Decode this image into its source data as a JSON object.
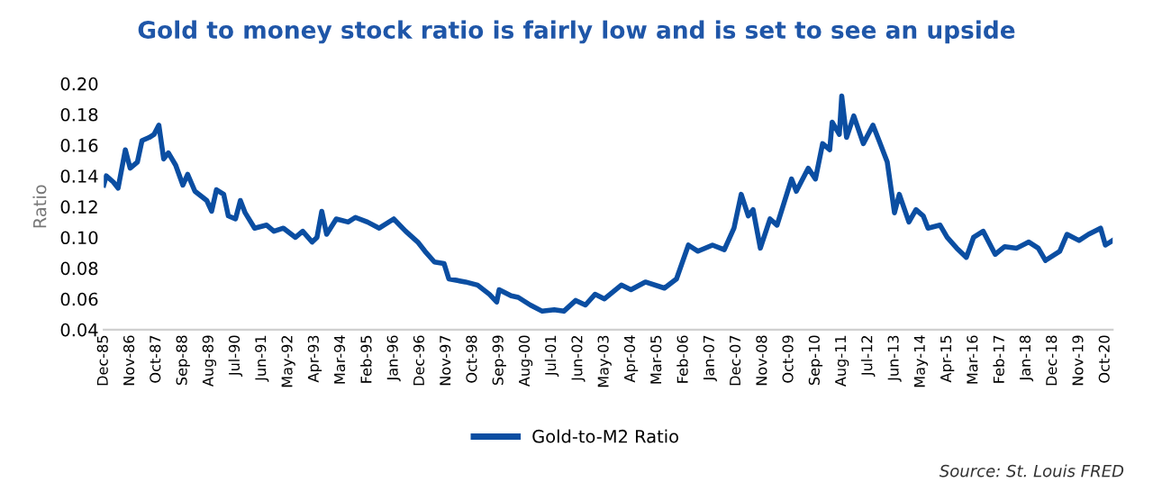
{
  "chart_data": {
    "type": "line",
    "title": "Gold to money stock ratio is fairly low and is set to see an upside",
    "ylabel": "Ratio",
    "annotations": [
      "Source: St. Louis FRED"
    ],
    "x": [
      "1985-12",
      "1986-01",
      "1986-04",
      "1986-06",
      "1986-09",
      "1986-11",
      "1987-02",
      "1987-04",
      "1987-07",
      "1987-09",
      "1987-11",
      "1988-01",
      "1988-03",
      "1988-06",
      "1988-09",
      "1988-11",
      "1989-02",
      "1989-07",
      "1989-09",
      "1989-11",
      "1990-02",
      "1990-04",
      "1990-07",
      "1990-09",
      "1990-11",
      "1991-03",
      "1991-08",
      "1991-11",
      "1992-03",
      "1992-08",
      "1992-11",
      "1993-03",
      "1993-05",
      "1993-07",
      "1993-09",
      "1994-01",
      "1994-06",
      "1994-09",
      "1995-02",
      "1995-07",
      "1996-01",
      "1996-06",
      "1996-11",
      "1997-02",
      "1997-06",
      "1997-10",
      "1997-12",
      "1998-07",
      "1998-12",
      "1999-05",
      "1999-08",
      "1999-09",
      "2000-02",
      "2000-05",
      "2000-10",
      "2001-03",
      "2001-08",
      "2001-12",
      "2002-05",
      "2002-09",
      "2003-01",
      "2003-05",
      "2003-12",
      "2004-04",
      "2004-10",
      "2005-06",
      "2005-11",
      "2006-04",
      "2006-08",
      "2007-02",
      "2007-07",
      "2007-11",
      "2008-02",
      "2008-05",
      "2008-07",
      "2008-10",
      "2009-02",
      "2009-05",
      "2009-11",
      "2010-01",
      "2010-06",
      "2010-09",
      "2010-12",
      "2011-03",
      "2011-04",
      "2011-07",
      "2011-08",
      "2011-10",
      "2012-01",
      "2012-05",
      "2012-09",
      "2012-12",
      "2013-03",
      "2013-06",
      "2013-08",
      "2013-12",
      "2014-03",
      "2014-06",
      "2014-08",
      "2015-01",
      "2015-04",
      "2015-08",
      "2015-12",
      "2016-03",
      "2016-07",
      "2016-12",
      "2017-04",
      "2017-09",
      "2018-02",
      "2018-06",
      "2018-09",
      "2019-03",
      "2019-06",
      "2019-11",
      "2020-03",
      "2020-08",
      "2020-10",
      "2021-01"
    ],
    "series": [
      {
        "name": "Gold-to-M2 Ratio",
        "color": "#0b4ea2",
        "values": [
          0.134,
          0.14,
          0.136,
          0.132,
          0.157,
          0.145,
          0.149,
          0.163,
          0.165,
          0.167,
          0.173,
          0.151,
          0.155,
          0.147,
          0.134,
          0.141,
          0.13,
          0.124,
          0.117,
          0.131,
          0.128,
          0.114,
          0.112,
          0.124,
          0.116,
          0.106,
          0.108,
          0.104,
          0.106,
          0.1,
          0.104,
          0.097,
          0.1,
          0.117,
          0.102,
          0.112,
          0.11,
          0.113,
          0.11,
          0.106,
          0.112,
          0.104,
          0.097,
          0.091,
          0.084,
          0.083,
          0.073,
          0.071,
          0.069,
          0.063,
          0.058,
          0.066,
          0.062,
          0.061,
          0.056,
          0.052,
          0.053,
          0.052,
          0.059,
          0.056,
          0.063,
          0.06,
          0.069,
          0.066,
          0.071,
          0.067,
          0.073,
          0.095,
          0.091,
          0.095,
          0.092,
          0.106,
          0.128,
          0.114,
          0.118,
          0.093,
          0.112,
          0.108,
          0.138,
          0.13,
          0.145,
          0.138,
          0.161,
          0.157,
          0.175,
          0.167,
          0.192,
          0.165,
          0.179,
          0.161,
          0.173,
          0.161,
          0.149,
          0.116,
          0.128,
          0.11,
          0.118,
          0.114,
          0.106,
          0.108,
          0.1,
          0.093,
          0.087,
          0.1,
          0.104,
          0.089,
          0.094,
          0.093,
          0.097,
          0.093,
          0.085,
          0.091,
          0.102,
          0.098,
          0.102,
          0.106,
          0.095,
          0.098
        ]
      }
    ],
    "xlim": [
      "1985-12",
      "2021-01"
    ],
    "xticks": [
      {
        "value": "1985-12",
        "label": "Dec-85"
      },
      {
        "value": "1986-11",
        "label": "Nov-86"
      },
      {
        "value": "1987-10",
        "label": "Oct-87"
      },
      {
        "value": "1988-09",
        "label": "Sep-88"
      },
      {
        "value": "1989-08",
        "label": "Aug-89"
      },
      {
        "value": "1990-07",
        "label": "Jul-90"
      },
      {
        "value": "1991-06",
        "label": "Jun-91"
      },
      {
        "value": "1992-05",
        "label": "May-92"
      },
      {
        "value": "1993-04",
        "label": "Apr-93"
      },
      {
        "value": "1994-03",
        "label": "Mar-94"
      },
      {
        "value": "1995-02",
        "label": "Feb-95"
      },
      {
        "value": "1996-01",
        "label": "Jan-96"
      },
      {
        "value": "1996-12",
        "label": "Dec-96"
      },
      {
        "value": "1997-11",
        "label": "Nov-97"
      },
      {
        "value": "1998-10",
        "label": "Oct-98"
      },
      {
        "value": "1999-09",
        "label": "Sep-99"
      },
      {
        "value": "2000-08",
        "label": "Aug-00"
      },
      {
        "value": "2001-07",
        "label": "Jul-01"
      },
      {
        "value": "2002-06",
        "label": "Jun-02"
      },
      {
        "value": "2003-05",
        "label": "May-03"
      },
      {
        "value": "2004-04",
        "label": "Apr-04"
      },
      {
        "value": "2005-03",
        "label": "Mar-05"
      },
      {
        "value": "2006-02",
        "label": "Feb-06"
      },
      {
        "value": "2007-01",
        "label": "Jan-07"
      },
      {
        "value": "2007-12",
        "label": "Dec-07"
      },
      {
        "value": "2008-11",
        "label": "Nov-08"
      },
      {
        "value": "2009-10",
        "label": "Oct-09"
      },
      {
        "value": "2010-09",
        "label": "Sep-10"
      },
      {
        "value": "2011-08",
        "label": "Aug-11"
      },
      {
        "value": "2012-07",
        "label": "Jul-12"
      },
      {
        "value": "2013-06",
        "label": "Jun-13"
      },
      {
        "value": "2014-05",
        "label": "May-14"
      },
      {
        "value": "2015-04",
        "label": "Apr-15"
      },
      {
        "value": "2016-03",
        "label": "Mar-16"
      },
      {
        "value": "2017-02",
        "label": "Feb-17"
      },
      {
        "value": "2018-01",
        "label": "Jan-18"
      },
      {
        "value": "2018-12",
        "label": "Dec-18"
      },
      {
        "value": "2019-11",
        "label": "Nov-19"
      },
      {
        "value": "2020-10",
        "label": "Oct-20"
      }
    ],
    "ylim": [
      0.04,
      0.2
    ],
    "yticks": [
      0.04,
      0.06,
      0.08,
      {
        "value": 0.1,
        "label": "0.10"
      },
      0.12,
      0.14,
      0.16,
      0.18,
      {
        "value": 0.2,
        "label": "0.20"
      }
    ],
    "legend": "bottom",
    "grid": false,
    "marker": "none",
    "line_style": "solid"
  }
}
